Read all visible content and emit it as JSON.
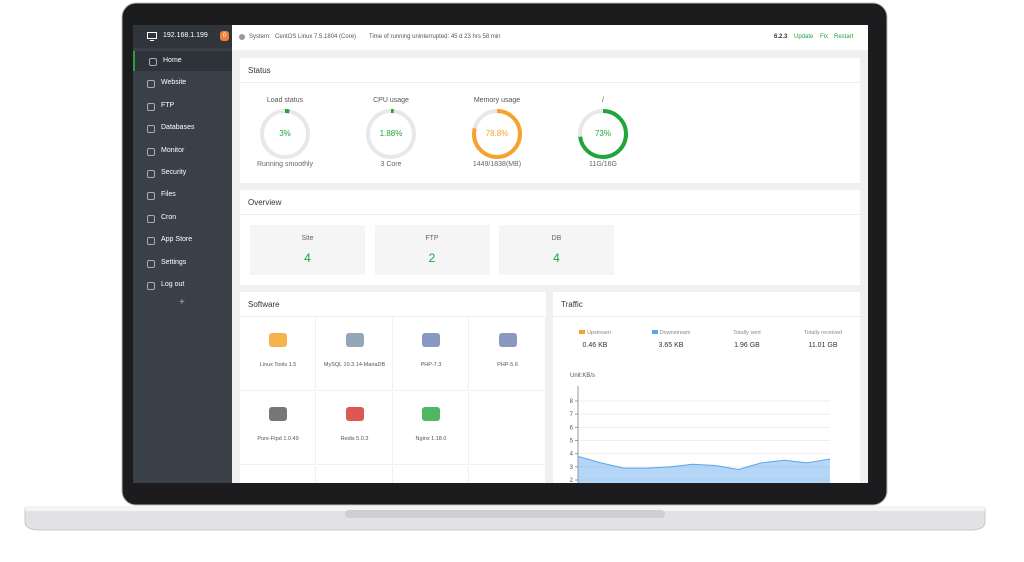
{
  "sidebar": {
    "host": "192.168.1.199",
    "badge": "0",
    "menu": [
      "Home",
      "Website",
      "FTP",
      "Databases",
      "Monitor",
      "Security",
      "Files",
      "Cron",
      "App Store",
      "Settings",
      "Log out"
    ],
    "add": "+"
  },
  "topbar": {
    "system_label": "System:",
    "system": "CentOS Linux 7.5.1804 (Core)",
    "uptime": "Time of running uninterrupted: 45 d 23 hrs 58 min",
    "version": "6.2.3",
    "links": [
      "Update",
      "Fix",
      "Restart"
    ]
  },
  "status": {
    "title": "Status",
    "gauges": [
      {
        "label": "Load status",
        "value": 3,
        "value_label": "3%",
        "caption": "Running smoothly",
        "color": "#20a53a"
      },
      {
        "label": "CPU usage",
        "value": 1.88,
        "value_label": "1.88%",
        "caption": "3 Core",
        "color": "#20a53a"
      },
      {
        "label": "Memory usage",
        "value": 78.8,
        "value_label": "78.8%",
        "caption": "1449/1838(MB)",
        "color": "#f7a22f"
      },
      {
        "label": "/",
        "value": 73,
        "value_label": "73%",
        "caption": "11G/16G",
        "color": "#20a53a"
      }
    ]
  },
  "overview": {
    "title": "Overview",
    "cards": [
      {
        "label": "Site",
        "value": "4"
      },
      {
        "label": "FTP",
        "value": "2"
      },
      {
        "label": "DB",
        "value": "4"
      }
    ]
  },
  "software": {
    "title": "Software",
    "items": [
      "Linux Tools 1.5",
      "MySQL 10.3.14-MariaDB",
      "PHP-7.3",
      "PHP-5.6",
      "Pure-Ftpd 1.0.49",
      "Redis 5.0.3",
      "Nginx 1.18.0"
    ]
  },
  "traffic": {
    "title": "Traffic",
    "stats": [
      {
        "label": "Upstream",
        "value": "0.46 KB"
      },
      {
        "label": "Downstream",
        "value": "3.65 KB"
      },
      {
        "label": "Totally sent",
        "value": "1.96 GB"
      },
      {
        "label": "Totally received",
        "value": "11.01 GB"
      }
    ],
    "chart": {
      "type": "area",
      "unit": "Unit:KB/s",
      "ylim": [
        2,
        8
      ],
      "yticks": [
        2,
        3,
        4,
        5,
        6,
        7,
        8
      ],
      "grid": true,
      "series": [
        {
          "name": "Downstream",
          "color": "#5aa5ec",
          "values": [
            3.8,
            3.3,
            2.9,
            2.9,
            3.0,
            3.2,
            3.1,
            2.8,
            3.3,
            3.5,
            3.3,
            3.6
          ]
        }
      ]
    }
  }
}
